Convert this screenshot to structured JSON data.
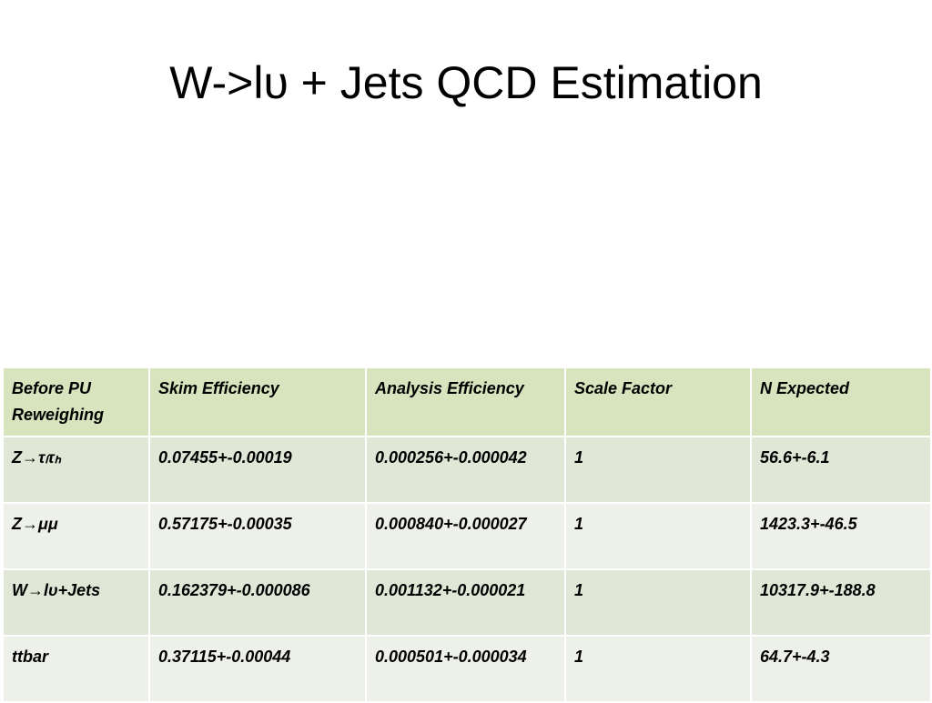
{
  "title": "W->lυ + Jets QCD Estimation",
  "table": {
    "header": [
      "Before PU Reweighing",
      "Skim Efficiency",
      "Analysis Efficiency",
      "Scale Factor",
      "N Expected"
    ],
    "rows": [
      [
        "Z→τₗτₕ",
        "0.07455+-0.00019",
        "0.000256+-0.000042",
        "1",
        "56.6+-6.1"
      ],
      [
        "Z→μμ",
        "0.57175+-0.00035",
        "0.000840+-0.000027",
        "1",
        "1423.3+-46.5"
      ],
      [
        "W→lυ+Jets",
        "0.162379+-0.000086",
        "0.001132+-0.000021",
        "1",
        "10317.9+-188.8"
      ],
      [
        "ttbar",
        "0.37115+-0.00044",
        "0.000501+-0.000034",
        "1",
        "64.7+-4.3"
      ]
    ]
  }
}
